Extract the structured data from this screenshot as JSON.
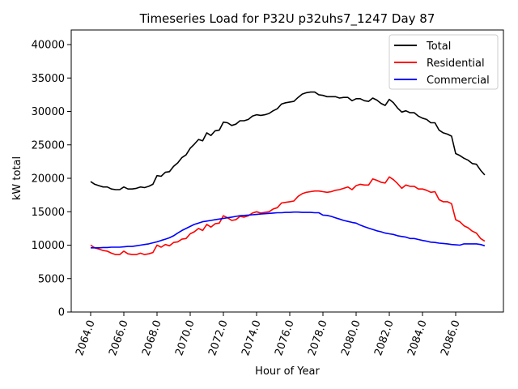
{
  "chart_data": {
    "type": "line",
    "title": "Timeseries Load for P32U p32uhs7_1247  Day 87",
    "xlabel": "Hour of Year",
    "ylabel": "kW total",
    "xlim": [
      2062.9,
      2088.8
    ],
    "ylim": [
      0,
      42000
    ],
    "grid": false,
    "legend_position": "top-right",
    "x_ticks": [
      2064,
      2066,
      2068,
      2070,
      2072,
      2074,
      2076,
      2078,
      2080,
      2082,
      2084,
      2086
    ],
    "x_tick_labels": [
      "2064.0",
      "2066.0",
      "2068.0",
      "2070.0",
      "2072.0",
      "2074.0",
      "2076.0",
      "2078.0",
      "2080.0",
      "2082.0",
      "2084.0",
      "2086.0"
    ],
    "y_ticks": [
      0,
      5000,
      10000,
      15000,
      20000,
      25000,
      30000,
      35000,
      40000
    ],
    "y_tick_labels": [
      "0",
      "5000",
      "10000",
      "15000",
      "20000",
      "25000",
      "30000",
      "35000",
      "40000"
    ],
    "x": [
      2064.0,
      2064.25,
      2064.5,
      2064.75,
      2065.0,
      2065.25,
      2065.5,
      2065.75,
      2066.0,
      2066.25,
      2066.5,
      2066.75,
      2067.0,
      2067.25,
      2067.5,
      2067.75,
      2068.0,
      2068.25,
      2068.5,
      2068.75,
      2069.0,
      2069.25,
      2069.5,
      2069.75,
      2070.0,
      2070.25,
      2070.5,
      2070.75,
      2071.0,
      2071.25,
      2071.5,
      2071.75,
      2072.0,
      2072.25,
      2072.5,
      2072.75,
      2073.0,
      2073.25,
      2073.5,
      2073.75,
      2074.0,
      2074.25,
      2074.5,
      2074.75,
      2075.0,
      2075.25,
      2075.5,
      2075.75,
      2076.0,
      2076.25,
      2076.5,
      2076.75,
      2077.0,
      2077.25,
      2077.5,
      2077.75,
      2078.0,
      2078.25,
      2078.5,
      2078.75,
      2079.0,
      2079.25,
      2079.5,
      2079.75,
      2080.0,
      2080.25,
      2080.5,
      2080.75,
      2081.0,
      2081.25,
      2081.5,
      2081.75,
      2082.0,
      2082.25,
      2082.5,
      2082.75,
      2083.0,
      2083.25,
      2083.5,
      2083.75,
      2084.0,
      2084.25,
      2084.5,
      2084.75,
      2085.0,
      2085.25,
      2085.5,
      2085.75,
      2086.0,
      2086.25,
      2086.5,
      2086.75,
      2087.0,
      2087.25,
      2087.5,
      2087.75
    ],
    "series": [
      {
        "name": "Total",
        "color": "#000000",
        "values": [
          19500,
          19100,
          18900,
          18700,
          18700,
          18400,
          18300,
          18300,
          18700,
          18400,
          18400,
          18500,
          18700,
          18600,
          18800,
          19100,
          20400,
          20300,
          20900,
          21000,
          21800,
          22300,
          23100,
          23500,
          24500,
          25100,
          25800,
          25600,
          26800,
          26400,
          27100,
          27200,
          28400,
          28300,
          27900,
          28100,
          28600,
          28600,
          28800,
          29300,
          29500,
          29400,
          29500,
          29700,
          30100,
          30400,
          31100,
          31300,
          31400,
          31500,
          32100,
          32600,
          32800,
          32900,
          32900,
          32500,
          32400,
          32200,
          32200,
          32200,
          32000,
          32100,
          32100,
          31600,
          31900,
          31900,
          31600,
          31500,
          32000,
          31700,
          31200,
          30900,
          31800,
          31300,
          30500,
          29900,
          30100,
          29800,
          29800,
          29300,
          29000,
          28800,
          28300,
          28300,
          27200,
          26800,
          26600,
          26300,
          23700,
          23400,
          23000,
          22700,
          22200,
          22100,
          21200,
          20500
        ]
      },
      {
        "name": "Residential",
        "color": "#ff0000",
        "values": [
          10000,
          9600,
          9400,
          9200,
          9100,
          8800,
          8600,
          8600,
          9100,
          8700,
          8600,
          8600,
          8800,
          8600,
          8700,
          8900,
          10000,
          9700,
          10100,
          9900,
          10400,
          10500,
          10900,
          11000,
          11700,
          12000,
          12500,
          12200,
          13100,
          12700,
          13200,
          13300,
          14400,
          14100,
          13700,
          13800,
          14300,
          14200,
          14400,
          14800,
          15000,
          14800,
          14900,
          15000,
          15400,
          15600,
          16300,
          16400,
          16500,
          16600,
          17300,
          17700,
          17900,
          18000,
          18100,
          18100,
          18000,
          17900,
          18000,
          18200,
          18300,
          18500,
          18700,
          18300,
          18900,
          19100,
          19000,
          19000,
          19900,
          19700,
          19400,
          19300,
          20200,
          19800,
          19200,
          18500,
          19000,
          18800,
          18800,
          18400,
          18400,
          18200,
          17900,
          18000,
          16800,
          16500,
          16500,
          16200,
          13800,
          13500,
          12900,
          12600,
          12100,
          11800,
          11000,
          10600
        ]
      },
      {
        "name": "Commercial",
        "color": "#0000ff",
        "values": [
          9600,
          9600,
          9600,
          9650,
          9650,
          9700,
          9700,
          9700,
          9750,
          9800,
          9800,
          9900,
          10000,
          10100,
          10200,
          10350,
          10500,
          10700,
          10900,
          11100,
          11400,
          11800,
          12200,
          12500,
          12800,
          13100,
          13300,
          13500,
          13600,
          13700,
          13800,
          13900,
          14000,
          14100,
          14200,
          14300,
          14400,
          14450,
          14500,
          14550,
          14600,
          14650,
          14700,
          14750,
          14800,
          14850,
          14850,
          14900,
          14900,
          14950,
          14950,
          14900,
          14900,
          14900,
          14850,
          14850,
          14500,
          14450,
          14300,
          14100,
          13900,
          13700,
          13550,
          13400,
          13300,
          13000,
          12750,
          12550,
          12350,
          12150,
          12000,
          11800,
          11700,
          11600,
          11400,
          11300,
          11200,
          11000,
          11000,
          10850,
          10700,
          10600,
          10450,
          10400,
          10300,
          10250,
          10200,
          10100,
          10050,
          10000,
          10200,
          10200,
          10200,
          10200,
          10100,
          9900
        ]
      }
    ]
  }
}
